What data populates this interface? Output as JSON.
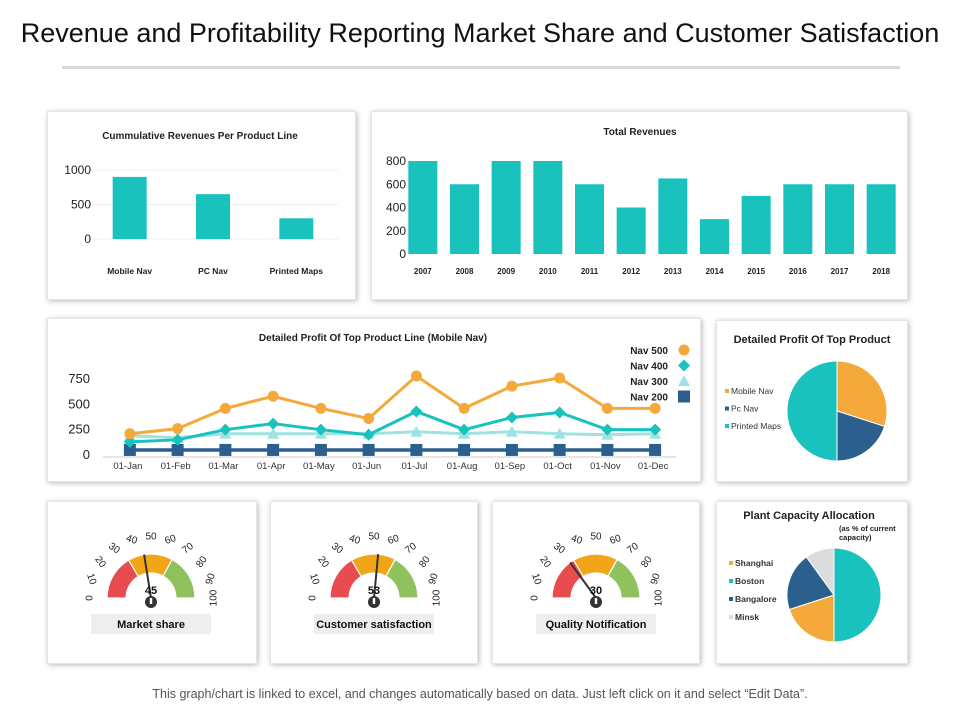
{
  "page": {
    "title": "Revenue and Profitability Reporting Market Share and Customer Satisfaction",
    "footer": "This graph/chart is linked to excel, and changes automatically based on data. Just left click on it and select “Edit Data”."
  },
  "colors": {
    "teal": "#19c2bd",
    "orange": "#f4a93a",
    "navy": "#2b5f8e",
    "light_teal": "#9de3e0",
    "red": "#e84c4f",
    "green": "#8fc15c",
    "gold": "#f2a516",
    "gray": "#dcdcdc"
  },
  "chart_data": [
    {
      "id": "cumulative",
      "type": "bar",
      "title": "Cummulative Revenues Per Product Line",
      "categories": [
        "Mobile Nav",
        "PC Nav",
        "Printed Maps"
      ],
      "values": [
        900,
        650,
        300
      ],
      "yticks": [
        "0",
        "500",
        "1000"
      ],
      "ylim": [
        0,
        1000
      ]
    },
    {
      "id": "total",
      "type": "bar",
      "title": "Total Revenues",
      "categories": [
        "2007",
        "2008",
        "2009",
        "2010",
        "2011",
        "2012",
        "2013",
        "2014",
        "2015",
        "2016",
        "2017",
        "2018"
      ],
      "values": [
        800,
        600,
        800,
        800,
        600,
        400,
        650,
        300,
        500,
        600,
        600,
        600
      ],
      "yticks": [
        "0",
        "200",
        "400",
        "600",
        "800"
      ],
      "ylim": [
        0,
        800
      ]
    },
    {
      "id": "profit",
      "type": "line",
      "title": "Detailed Profit Of Top Product Line (Mobile Nav)",
      "categories": [
        "01-Jan",
        "01-Feb",
        "01-Mar",
        "01-Apr",
        "01-May",
        "01-Jun",
        "01-Jul",
        "01-Aug",
        "01-Sep",
        "01-Oct",
        "01-Nov",
        "01-Dec"
      ],
      "yticks": [
        "0",
        "250",
        "500",
        "750"
      ],
      "ylim": [
        0,
        750
      ],
      "series": [
        {
          "name": "Nav 500",
          "marker": "circle",
          "color": "#f4a93a",
          "values": [
            200,
            250,
            450,
            570,
            450,
            350,
            770,
            450,
            670,
            750,
            450,
            450
          ]
        },
        {
          "name": "Nav 400",
          "marker": "diamond",
          "color": "#19c2bd",
          "values": [
            120,
            140,
            240,
            300,
            240,
            190,
            420,
            240,
            360,
            410,
            240,
            240
          ]
        },
        {
          "name": "Nav 300",
          "marker": "triangle",
          "color": "#9de3e0",
          "values": [
            180,
            160,
            200,
            200,
            200,
            200,
            220,
            200,
            220,
            200,
            190,
            200
          ]
        },
        {
          "name": "Nav 200",
          "marker": "square",
          "color": "#2b5f8e",
          "values": [
            40,
            40,
            40,
            40,
            40,
            40,
            40,
            40,
            40,
            40,
            40,
            40
          ]
        }
      ]
    },
    {
      "id": "top_product",
      "type": "pie",
      "title": "Detailed Profit Of Top Product",
      "labels": [
        "Mobile Nav",
        "Pc Nav",
        "Printed Maps"
      ],
      "values": [
        30,
        20,
        50
      ],
      "colors": [
        "#f4a93a",
        "#2b5f8e",
        "#19c2bd"
      ]
    },
    {
      "id": "plant",
      "type": "pie",
      "title": "Plant Capacity Allocation",
      "subtitle": "(as % of current capacity)",
      "labels": [
        "Boston",
        "Shanghai",
        "Bangalore",
        "Minsk"
      ],
      "values": [
        50,
        20,
        20,
        10
      ],
      "legend_order": [
        1,
        0,
        2,
        3
      ],
      "colors": [
        "#19c2bd",
        "#f4a93a",
        "#2b5f8e",
        "#dcdcdc"
      ]
    }
  ],
  "gauges": [
    {
      "id": "market",
      "label": "Market share",
      "value": 45,
      "value_text": "45"
    },
    {
      "id": "customer",
      "label": "Customer satisfaction",
      "value": 53,
      "value_text": "53"
    },
    {
      "id": "quality",
      "label": "Quality Notification",
      "value": 30,
      "value_text": "30"
    }
  ],
  "gauge_scale": [
    "0",
    "10",
    "20",
    "30",
    "40",
    "50",
    "60",
    "70",
    "80",
    "90",
    "100"
  ]
}
